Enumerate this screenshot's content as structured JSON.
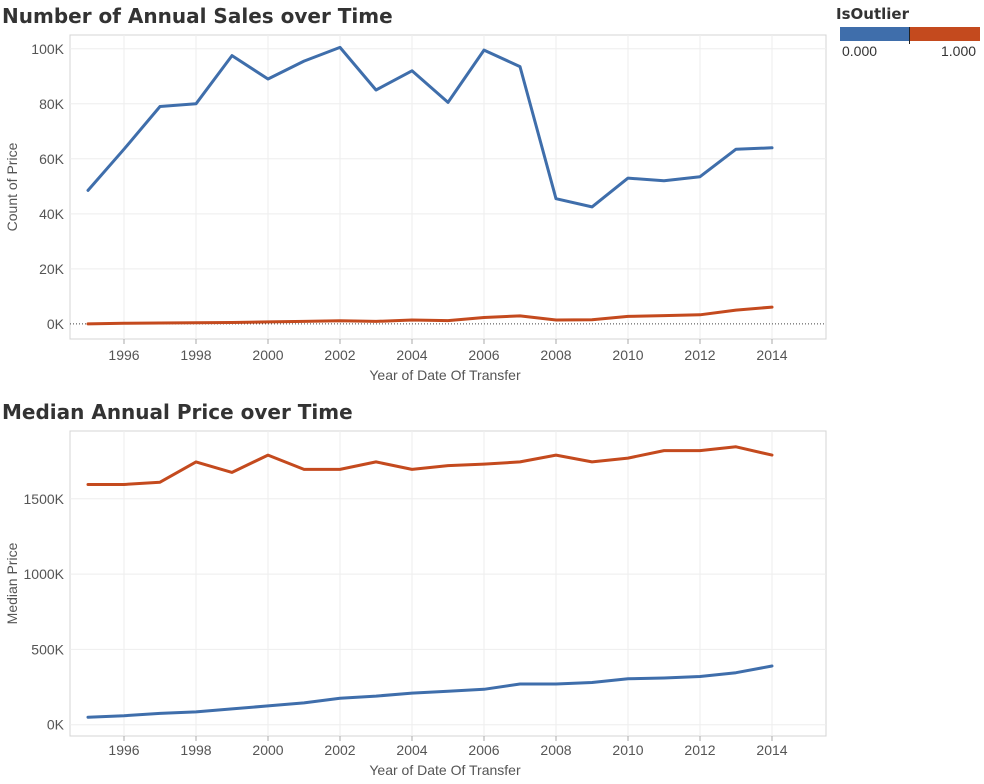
{
  "legend": {
    "title": "IsOutlier",
    "min_label": "0.000",
    "max_label": "1.000",
    "colors": {
      "low": "#3f6eab",
      "high": "#c44a1e"
    }
  },
  "chart_data": [
    {
      "type": "line",
      "title": "Number of Annual Sales over Time",
      "xlabel": "Year of Date Of Transfer",
      "ylabel": "Count of Price",
      "x": [
        1995,
        1996,
        1997,
        1998,
        1999,
        2000,
        2001,
        2002,
        2003,
        2004,
        2005,
        2006,
        2007,
        2008,
        2009,
        2010,
        2011,
        2012,
        2013,
        2014
      ],
      "xticks": [
        1996,
        1998,
        2000,
        2002,
        2004,
        2006,
        2008,
        2010,
        2012,
        2014
      ],
      "ylim": [
        -5500,
        105000
      ],
      "yticks": [
        0,
        20000,
        40000,
        60000,
        80000,
        100000
      ],
      "ytick_labels": [
        "0K",
        "20K",
        "40K",
        "60K",
        "80K",
        "100K"
      ],
      "grid": true,
      "series": [
        {
          "color": "#3f6eab",
          "values": [
            48500,
            63500,
            79000,
            80000,
            97500,
            89000,
            95500,
            100500,
            85000,
            92000,
            80500,
            99500,
            93500,
            45500,
            42500,
            53000,
            52000,
            53500,
            63500,
            64000
          ]
        },
        {
          "color": "#c44a1e",
          "values": [
            0,
            200,
            300,
            400,
            500,
            700,
            900,
            1100,
            900,
            1400,
            1200,
            2300,
            2900,
            1400,
            1500,
            2700,
            3000,
            3300,
            5000,
            6100
          ]
        }
      ]
    },
    {
      "type": "line",
      "title": "Median Annual Price over Time",
      "xlabel": "Year of Date Of Transfer",
      "ylabel": "Median Price",
      "x": [
        1995,
        1996,
        1997,
        1998,
        1999,
        2000,
        2001,
        2002,
        2003,
        2004,
        2005,
        2006,
        2007,
        2008,
        2009,
        2010,
        2011,
        2012,
        2013,
        2014
      ],
      "xticks": [
        1996,
        1998,
        2000,
        2002,
        2004,
        2006,
        2008,
        2010,
        2012,
        2014
      ],
      "ylim": [
        -75000,
        1950000
      ],
      "yticks": [
        0,
        500000,
        1000000,
        1500000
      ],
      "ytick_labels": [
        "0K",
        "500K",
        "1000K",
        "1500K"
      ],
      "grid": true,
      "series": [
        {
          "color": "#c44a1e",
          "values": [
            1595000,
            1595000,
            1610000,
            1745000,
            1675000,
            1790000,
            1695000,
            1695000,
            1745000,
            1695000,
            1720000,
            1730000,
            1745000,
            1790000,
            1745000,
            1770000,
            1820000,
            1820000,
            1845000,
            1790000
          ]
        },
        {
          "color": "#3f6eab",
          "values": [
            50000,
            60000,
            75000,
            85000,
            105000,
            125000,
            145000,
            175000,
            190000,
            210000,
            222000,
            235000,
            270000,
            270000,
            280000,
            305000,
            310000,
            320000,
            345000,
            390000
          ]
        }
      ]
    }
  ]
}
